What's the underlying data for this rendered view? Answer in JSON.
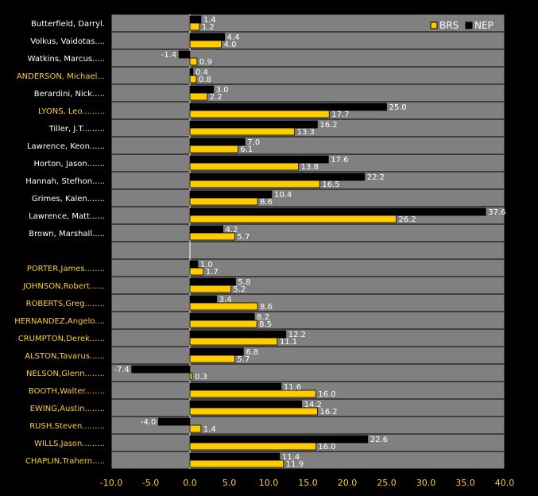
{
  "chart_data": {
    "type": "bar",
    "orientation": "horizontal",
    "xlim": [
      -10,
      40
    ],
    "xticks": [
      "-10.0",
      "-5.0",
      "0.0",
      "5.0",
      "10.0",
      "15.0",
      "20.0",
      "25.0",
      "30.0",
      "35.0",
      "40.0"
    ],
    "legend": {
      "placement": "top-right",
      "order": [
        "BRS",
        "NEP"
      ]
    },
    "grid": true,
    "colors": {
      "BRS": "#ffcc00",
      "NEP": "#000000",
      "plot_bg": "#808080",
      "label_gold": "#ffcc33"
    },
    "series": [
      {
        "name": "NEP",
        "values": [
          1.4,
          4.4,
          -1.4,
          0.4,
          3.0,
          25.0,
          16.2,
          7.0,
          17.6,
          22.2,
          10.4,
          37.6,
          4.2,
          null,
          1.0,
          5.8,
          3.4,
          8.2,
          12.2,
          6.8,
          -7.4,
          11.6,
          14.2,
          -4.0,
          22.6,
          11.4
        ],
        "labels": [
          "1.4",
          "4.4",
          "-1.4",
          "0.4",
          "3.0",
          "25.0",
          "16.2",
          "7.0",
          "17.6",
          "22.2",
          "10.4",
          "37.6",
          "4.2",
          "",
          "1.0",
          "5.8",
          "3.4",
          "8.2",
          "12.2",
          "6.8",
          "-7.4",
          "11.6",
          "14.2",
          "-4.0",
          "22.6",
          "11.4"
        ]
      },
      {
        "name": "BRS",
        "values": [
          1.2,
          4.0,
          0.9,
          0.8,
          2.2,
          17.7,
          13.3,
          6.1,
          13.8,
          16.5,
          8.6,
          26.2,
          5.7,
          null,
          1.7,
          5.2,
          8.6,
          8.5,
          11.1,
          5.7,
          0.3,
          16.0,
          16.2,
          1.4,
          16.0,
          11.9
        ],
        "labels": [
          "1.2",
          "4.0",
          "0.9",
          "0.8",
          "2.2",
          "17.7",
          "13.3",
          "6.1",
          "13.8",
          "16.5",
          "8.6",
          "26.2",
          "5.7",
          "",
          "1.7",
          "5.2",
          "8.6",
          "8.5",
          "11.1",
          "5.7",
          "0.3",
          "16.0",
          "16.2",
          "1.4",
          "16.0",
          "11.9"
        ]
      }
    ],
    "categories": [
      {
        "label": "Butterfield, Darryl.",
        "team": "NEP"
      },
      {
        "label": "Volkus, Vaidotas....",
        "team": "NEP"
      },
      {
        "label": "Watkins, Marcus.....",
        "team": "NEP"
      },
      {
        "label": "ANDERSON, Michael...",
        "team": "BRS"
      },
      {
        "label": "Berardini, Nick.....",
        "team": "NEP"
      },
      {
        "label": "LYONS, Leo.........",
        "team": "BRS"
      },
      {
        "label": "Tiller, J.T.........",
        "team": "NEP"
      },
      {
        "label": "Lawrence, Keon......",
        "team": "NEP"
      },
      {
        "label": "Horton, Jason.......",
        "team": "NEP"
      },
      {
        "label": "Hannah, Stefhon.....",
        "team": "NEP"
      },
      {
        "label": "Grimes, Kalen.......",
        "team": "NEP"
      },
      {
        "label": "Lawrence, Matt......",
        "team": "NEP"
      },
      {
        "label": "Brown, Marshall.....",
        "team": "NEP"
      },
      {
        "label": "",
        "team": ""
      },
      {
        "label": "PORTER,James........",
        "team": "BRS"
      },
      {
        "label": "JOHNSON,Robert......",
        "team": "BRS"
      },
      {
        "label": "ROBERTS,Greg........",
        "team": "BRS"
      },
      {
        "label": "HERNANDEZ,Angelo....",
        "team": "BRS"
      },
      {
        "label": "CRUMPTON,Derek......",
        "team": "BRS"
      },
      {
        "label": "ALSTON,Tavarus......",
        "team": "BRS"
      },
      {
        "label": "NELSON,Glenn........",
        "team": "BRS"
      },
      {
        "label": "BOOTH,Walter........",
        "team": "BRS"
      },
      {
        "label": "EWING,Austin........",
        "team": "BRS"
      },
      {
        "label": "RUSH,Steven.........",
        "team": "BRS"
      },
      {
        "label": "WILLS,Jason.........",
        "team": "BRS"
      },
      {
        "label": "CHAPLIN,Trahern.....",
        "team": "BRS"
      }
    ]
  }
}
